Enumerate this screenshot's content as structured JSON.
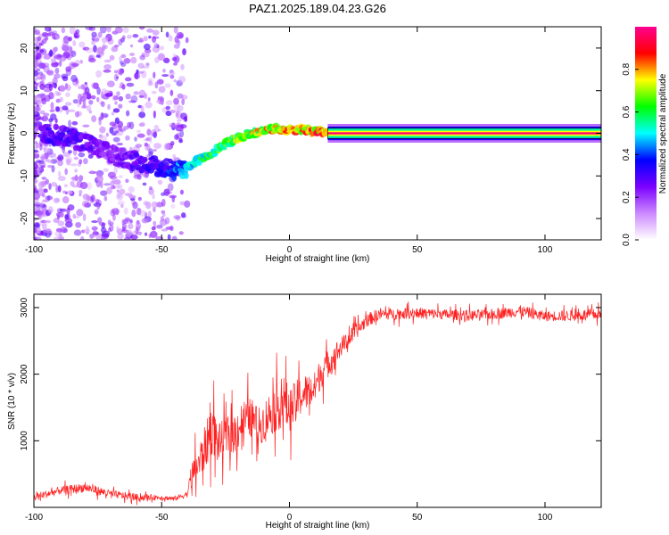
{
  "title": "PAZ1.2025.189.04.23.G26",
  "chart_data": [
    {
      "type": "heatmap",
      "xlabel": "Height of straight line (km)",
      "ylabel": "Frequency (Hz)",
      "xlim": [
        -100,
        122
      ],
      "ylim": [
        -25,
        25
      ],
      "xticks": [
        -100,
        -50,
        0,
        50,
        100
      ],
      "xtick_labels": [
        "-100",
        "-50",
        "0",
        "50",
        "100"
      ],
      "yticks": [
        -20,
        -10,
        0,
        10,
        20
      ],
      "ytick_labels": [
        "-20",
        "-10",
        "0",
        "10",
        "20"
      ],
      "ridge": {
        "x": [
          -97,
          -90,
          -80,
          -70,
          -60,
          -50,
          -45,
          -40,
          -35,
          -30,
          -25,
          -20,
          -15,
          -10,
          -5,
          0,
          5,
          10,
          15,
          122
        ],
        "y": [
          0,
          -0.5,
          -2,
          -5,
          -6.5,
          -8,
          -8.5,
          -8.3,
          -6,
          -4.5,
          -2.5,
          -1,
          0,
          0.5,
          1,
          0.5,
          1,
          0.5,
          0,
          0
        ],
        "amplitude": [
          0.3,
          0.35,
          0.3,
          0.25,
          0.3,
          0.35,
          0.45,
          0.5,
          0.6,
          0.65,
          0.7,
          0.75,
          0.8,
          0.82,
          0.85,
          0.85,
          0.9,
          0.9,
          0.95,
          0.98
        ]
      },
      "grid": false,
      "colorbar": {
        "label": "Normalized spectral amplitude",
        "range": [
          0,
          1
        ],
        "ticks": [
          0.0,
          0.2,
          0.4,
          0.6,
          0.8
        ],
        "tick_labels": [
          "0.0",
          "0.2",
          "0.4",
          "0.6",
          "0.8"
        ],
        "colors": [
          "#ffffff",
          "#cc88ff",
          "#7a00ff",
          "#0000ff",
          "#00ffff",
          "#00ff00",
          "#ffff00",
          "#ff0000",
          "#ff0090"
        ]
      }
    },
    {
      "type": "line",
      "xlabel": "Height of straight line (km)",
      "ylabel": "SNR (10 * v/v)",
      "xlim": [
        -100,
        122
      ],
      "ylim": [
        0,
        3200
      ],
      "xticks": [
        -100,
        -50,
        0,
        50,
        100
      ],
      "xtick_labels": [
        "-100",
        "-50",
        "0",
        "50",
        "100"
      ],
      "yticks": [
        1000,
        2000,
        3000
      ],
      "ytick_labels": [
        "1000",
        "2000",
        "3000"
      ],
      "grid": false,
      "series": [
        {
          "color": "#ff2020",
          "x": [
            -100,
            -90,
            -80,
            -70,
            -60,
            -50,
            -45,
            -40,
            -38,
            -35,
            -32,
            -30,
            -28,
            -25,
            -22,
            -20,
            -18,
            -15,
            -12,
            -10,
            -8,
            -5,
            -2,
            0,
            2,
            5,
            8,
            10,
            12,
            15,
            18,
            20,
            25,
            30,
            35,
            40,
            50,
            60,
            70,
            80,
            90,
            100,
            110,
            122
          ],
          "y": [
            150,
            250,
            300,
            200,
            150,
            150,
            130,
            200,
            500,
            700,
            1000,
            1200,
            950,
            1050,
            1100,
            1200,
            1300,
            1350,
            1200,
            1300,
            1400,
            1500,
            1600,
            1450,
            1550,
            1700,
            1750,
            1800,
            2000,
            2150,
            2300,
            2400,
            2600,
            2800,
            2900,
            2900,
            2920,
            2900,
            2880,
            2900,
            2950,
            2870,
            2880,
            2900
          ],
          "noise": [
            100,
            100,
            120,
            100,
            90,
            60,
            60,
            80,
            350,
            500,
            600,
            650,
            500,
            500,
            500,
            550,
            550,
            500,
            500,
            500,
            550,
            600,
            650,
            550,
            550,
            500,
            450,
            400,
            400,
            350,
            300,
            250,
            200,
            170,
            160,
            140,
            140,
            130,
            140,
            130,
            150,
            130,
            140,
            140
          ]
        }
      ]
    }
  ]
}
